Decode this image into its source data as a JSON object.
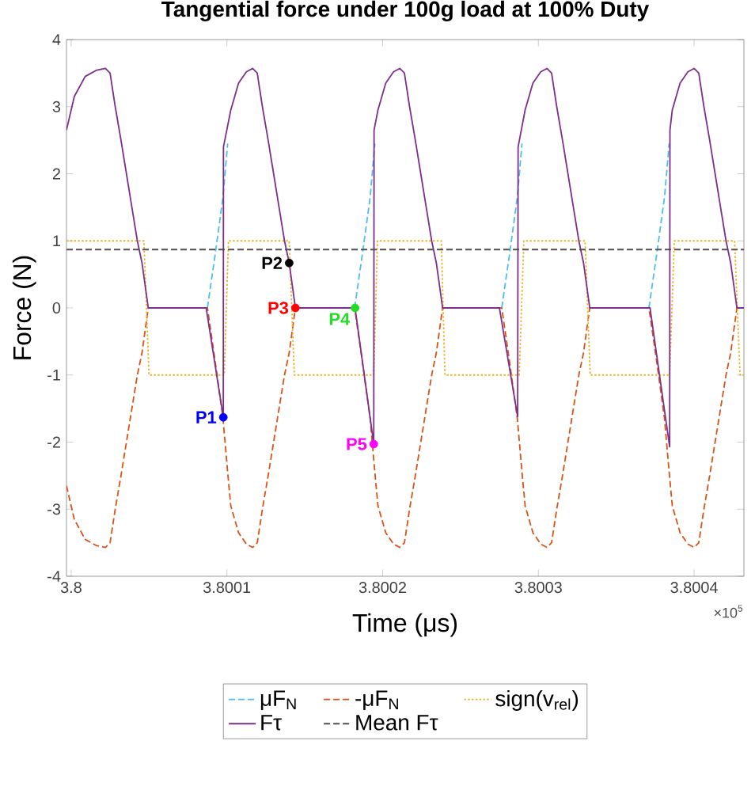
{
  "chart_data": {
    "type": "line",
    "title": "Tangential force under 100g load at 100% Duty",
    "xlabel": "Time (μs)",
    "ylabel": "Force (N)",
    "xlim": [
      3.799997,
      3.800432
    ],
    "ylim": [
      -4,
      4
    ],
    "xticks": [
      3.8,
      3.8001,
      3.8002,
      3.8003,
      3.8004
    ],
    "yticks": [
      -4,
      -3,
      -2,
      -1,
      0,
      1,
      2,
      3,
      4
    ],
    "annotations": [
      "×10$^{5}$"
    ],
    "legend": "bottom",
    "series": [
      {
        "name": "μF$_{N}$",
        "color": "#4dbeee",
        "line_style": "dashed",
        "x": [
          3.8000875,
          3.8000925,
          3.8000975,
          3.8001005,
          3.80014,
          3.800182,
          3.800187,
          3.800192,
          3.800195,
          3.80024,
          3.8002765,
          3.8002815,
          3.8002865,
          3.8002895,
          3.80033,
          3.800371,
          3.800376,
          3.800381,
          3.800384
        ],
        "values": [
          0,
          0.8,
          1.65,
          2.45,
          null,
          0,
          0.8,
          1.65,
          2.45,
          null,
          0,
          0.8,
          1.65,
          2.45,
          null,
          0,
          0.8,
          1.65,
          2.45
        ]
      },
      {
        "name": "-μF$_{N}$",
        "color": "#d95319",
        "line_style": "dashed",
        "x": [
          3.799997,
          3.800002,
          3.800009,
          3.800016,
          3.800022,
          3.800025,
          3.8000283,
          3.800032,
          3.8000355,
          3.800039,
          3.8000425,
          3.8000455,
          3.8000495,
          3.8000875,
          3.8000925,
          3.8000975,
          3.8001005,
          3.8001025,
          3.8001075,
          3.8001125,
          3.8001165,
          3.8001195,
          3.8001228,
          3.8001265,
          3.80013,
          3.8001335,
          3.800137,
          3.80014,
          3.800144,
          3.800182,
          3.800187,
          3.800192,
          3.800195,
          3.800197,
          3.800202,
          3.800207,
          3.800211,
          3.800214,
          3.8002173,
          3.800221,
          3.8002245,
          3.800228,
          3.8002315,
          3.8002345,
          3.8002385,
          3.8002765,
          3.8002815,
          3.8002865,
          3.8002895,
          3.8002915,
          3.8002965,
          3.8003015,
          3.8003055,
          3.8003085,
          3.8003118,
          3.8003155,
          3.800319,
          3.8003225,
          3.800326,
          3.800329,
          3.800333,
          3.800371,
          3.800376,
          3.800381,
          3.800384,
          3.800386,
          3.800391,
          3.800396,
          3.8004,
          3.800403,
          3.8004063,
          3.80041,
          3.8004135,
          3.800417,
          3.8004205,
          3.8004235,
          3.8004275,
          3.800432
        ],
        "values": [
          -2.65,
          -3.15,
          -3.45,
          -3.54,
          -3.57,
          -3.5,
          -3.0,
          -2.5,
          -2.0,
          -1.5,
          -1.0,
          -0.67,
          0,
          0,
          -0.8,
          -1.65,
          -2.45,
          -2.95,
          -3.35,
          -3.52,
          -3.57,
          -3.5,
          -3.0,
          -2.5,
          -2.0,
          -1.5,
          -1.0,
          -0.67,
          0,
          0,
          -0.8,
          -1.65,
          -2.45,
          -2.95,
          -3.35,
          -3.52,
          -3.57,
          -3.5,
          -3.0,
          -2.5,
          -2.0,
          -1.5,
          -1.0,
          -0.67,
          0,
          0,
          -0.8,
          -1.65,
          -2.45,
          -2.95,
          -3.35,
          -3.52,
          -3.57,
          -3.5,
          -3.0,
          -2.5,
          -2.0,
          -1.5,
          -1.0,
          -0.67,
          0,
          0,
          -0.8,
          -1.65,
          -2.45,
          -2.95,
          -3.35,
          -3.52,
          -3.57,
          -3.5,
          -3.0,
          -2.5,
          -2.0,
          -1.5,
          -1.0,
          -0.67,
          0,
          0
        ]
      },
      {
        "name": "sign(v$_{rel}$)",
        "color": "#edb120",
        "line_style": "dotted",
        "x": [
          3.799997,
          3.8000467,
          3.80005,
          3.8000983,
          3.800101,
          3.80014,
          3.8001433,
          3.8001943,
          3.8001967,
          3.8002377,
          3.80024,
          3.8002877,
          3.8002907,
          3.80033,
          3.8003333,
          3.8003843,
          3.8003873,
          3.800426,
          3.8004295,
          3.800432
        ],
        "values": [
          1,
          1,
          -1,
          -1,
          1,
          1,
          -1,
          -1,
          1,
          1,
          -1,
          -1,
          1,
          1,
          -1,
          -1,
          1,
          1,
          -1,
          -1
        ]
      },
      {
        "name": "Fτ",
        "color": "#7e2f8e",
        "line_style": "solid",
        "x": [
          3.799997,
          3.800002,
          3.800009,
          3.800016,
          3.800022,
          3.800025,
          3.8000283,
          3.800032,
          3.8000355,
          3.800039,
          3.8000425,
          3.8000455,
          3.8000495,
          3.8000867,
          3.8000977,
          3.8000978,
          3.8001025,
          3.8001075,
          3.8001125,
          3.8001165,
          3.8001195,
          3.8001228,
          3.8001265,
          3.80013,
          3.8001335,
          3.800137,
          3.80014,
          3.800144,
          3.8001823,
          3.8001943,
          3.8001945,
          3.800197,
          3.800202,
          3.800207,
          3.800211,
          3.800214,
          3.8002173,
          3.800221,
          3.8002245,
          3.800228,
          3.8002315,
          3.8002345,
          3.8002385,
          3.800275,
          3.8002867,
          3.800287,
          3.8002915,
          3.8002965,
          3.8003015,
          3.8003055,
          3.8003085,
          3.8003118,
          3.8003155,
          3.800319,
          3.8003225,
          3.800326,
          3.800329,
          3.800333,
          3.8003717,
          3.8003843,
          3.8003845,
          3.800386,
          3.800391,
          3.800396,
          3.8004,
          3.800403,
          3.8004063,
          3.80041,
          3.8004135,
          3.800417,
          3.8004205,
          3.8004235,
          3.8004275,
          3.800432
        ],
        "values": [
          2.65,
          3.15,
          3.45,
          3.54,
          3.57,
          3.5,
          3.0,
          2.5,
          2.0,
          1.5,
          1.0,
          0.67,
          0,
          0,
          -1.63,
          2.4,
          2.95,
          3.35,
          3.52,
          3.57,
          3.5,
          3.0,
          2.5,
          2.0,
          1.5,
          1.0,
          0.67,
          0,
          0,
          -2.03,
          2.65,
          2.95,
          3.35,
          3.52,
          3.57,
          3.5,
          3.0,
          2.5,
          2.0,
          1.5,
          1.0,
          0.67,
          0,
          0,
          -1.62,
          2.4,
          2.95,
          3.35,
          3.52,
          3.57,
          3.5,
          3.0,
          2.5,
          2.0,
          1.5,
          1.0,
          0.67,
          0,
          0,
          -2.07,
          2.65,
          2.95,
          3.35,
          3.52,
          3.57,
          3.5,
          3.0,
          2.5,
          2.0,
          1.5,
          1.0,
          0.67,
          0,
          0
        ]
      },
      {
        "name": "Mean Fτ",
        "color": "#505050",
        "line_style": "dashed",
        "x": [
          3.799997,
          3.800432
        ],
        "values": [
          0.87,
          0.87
        ]
      },
      {
        "name": "P1",
        "type": "scatter",
        "marker": "circle",
        "color": "#0000ff",
        "x": [
          3.8000977
        ],
        "values": [
          -1.63
        ]
      },
      {
        "name": "P2",
        "type": "scatter",
        "marker": "circle",
        "color": "#000000",
        "x": [
          3.80014
        ],
        "values": [
          0.67
        ]
      },
      {
        "name": "P3",
        "type": "scatter",
        "marker": "circle",
        "color": "#ff0000",
        "x": [
          3.800144
        ],
        "values": [
          0
        ]
      },
      {
        "name": "P4",
        "type": "scatter",
        "marker": "circle",
        "color": "#22dd22",
        "x": [
          3.8001823
        ],
        "values": [
          0
        ]
      },
      {
        "name": "P5",
        "type": "scatter",
        "marker": "circle",
        "color": "#ff00ff",
        "x": [
          3.8001943
        ],
        "values": [
          -2.03
        ]
      }
    ]
  }
}
